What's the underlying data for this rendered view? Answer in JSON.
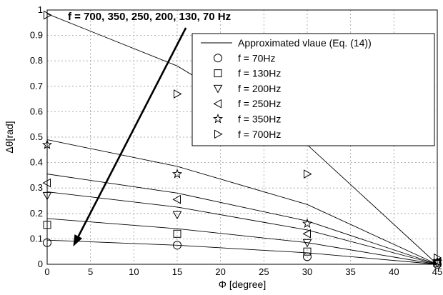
{
  "chart_data": {
    "type": "line",
    "xlabel": "Φ [degree]",
    "ylabel": "Δθ[rad]",
    "xlim": [
      0,
      45
    ],
    "ylim": [
      0,
      1
    ],
    "xticks": [
      "0",
      "5",
      "10",
      "15",
      "20",
      "25",
      "30",
      "35",
      "40",
      "45"
    ],
    "yticks": [
      "0",
      "0.1",
      "0.2",
      "0.3",
      "0.4",
      "0.5",
      "0.6",
      "0.7",
      "0.8",
      "0.9",
      "1"
    ],
    "grid": true,
    "legend_position": "top-right",
    "annotation": {
      "text": "f = 700, 350, 250, 200, 130, 70 Hz",
      "arrow_from": [
        16,
        0.93
      ],
      "arrow_to": [
        3,
        0.07
      ]
    },
    "approx_legend": "Approximated vlaue (Eq. (14))",
    "approx_curves": [
      {
        "freq": "70",
        "x": [
          0,
          15,
          30,
          45
        ],
        "y": [
          0.095,
          0.075,
          0.045,
          0.0
        ]
      },
      {
        "freq": "130",
        "x": [
          0,
          15,
          30,
          45
        ],
        "y": [
          0.18,
          0.14,
          0.085,
          0.0
        ]
      },
      {
        "freq": "200",
        "x": [
          0,
          15,
          30,
          45
        ],
        "y": [
          0.285,
          0.225,
          0.135,
          0.0
        ]
      },
      {
        "freq": "250",
        "x": [
          0,
          15,
          30,
          45
        ],
        "y": [
          0.355,
          0.28,
          0.17,
          0.0
        ]
      },
      {
        "freq": "350",
        "x": [
          0,
          15,
          30,
          45
        ],
        "y": [
          0.49,
          0.385,
          0.235,
          0.0
        ]
      },
      {
        "freq": "700",
        "x": [
          0,
          15,
          30,
          45
        ],
        "y": [
          0.985,
          0.78,
          0.47,
          0.0
        ]
      }
    ],
    "series": [
      {
        "name": "f = 70Hz",
        "marker": "circle",
        "x": [
          0,
          15,
          30,
          45
        ],
        "y": [
          0.085,
          0.075,
          0.03,
          0.0
        ]
      },
      {
        "name": "f = 130Hz",
        "marker": "square",
        "x": [
          0,
          15,
          30,
          45
        ],
        "y": [
          0.155,
          0.12,
          0.05,
          0.005
        ]
      },
      {
        "name": "f = 200Hz",
        "marker": "triangle-down",
        "x": [
          0,
          15,
          30,
          45
        ],
        "y": [
          0.27,
          0.195,
          0.085,
          0.005
        ]
      },
      {
        "name": "f = 250Hz",
        "marker": "triangle-left",
        "x": [
          0,
          15,
          30,
          45
        ],
        "y": [
          0.32,
          0.255,
          0.12,
          0.01
        ]
      },
      {
        "name": "f = 350Hz",
        "marker": "star",
        "x": [
          0,
          15,
          30,
          45
        ],
        "y": [
          0.47,
          0.355,
          0.16,
          0.01
        ]
      },
      {
        "name": "f = 700Hz",
        "marker": "triangle-right",
        "x": [
          0,
          15,
          30,
          45
        ],
        "y": [
          0.98,
          0.67,
          0.355,
          0.025
        ]
      }
    ]
  }
}
